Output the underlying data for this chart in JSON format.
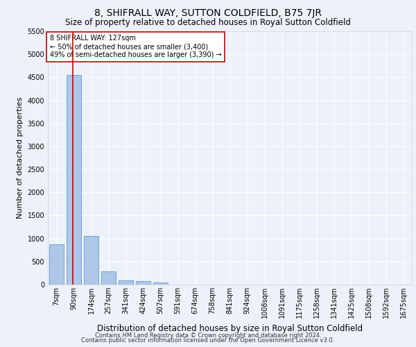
{
  "title": "8, SHIFRALL WAY, SUTTON COLDFIELD, B75 7JR",
  "subtitle": "Size of property relative to detached houses in Royal Sutton Coldfield",
  "xlabel": "Distribution of detached houses by size in Royal Sutton Coldfield",
  "ylabel": "Number of detached properties",
  "footer1": "Contains HM Land Registry data © Crown copyright and database right 2024.",
  "footer2": "Contains public sector information licensed under the Open Government Licence v3.0.",
  "bar_labels": [
    "7sqm",
    "90sqm",
    "174sqm",
    "257sqm",
    "341sqm",
    "424sqm",
    "507sqm",
    "591sqm",
    "674sqm",
    "758sqm",
    "841sqm",
    "924sqm",
    "1008sqm",
    "1091sqm",
    "1175sqm",
    "1258sqm",
    "1341sqm",
    "1425sqm",
    "1508sqm",
    "1592sqm",
    "1675sqm"
  ],
  "bar_values": [
    880,
    4550,
    1060,
    280,
    85,
    80,
    50,
    0,
    0,
    0,
    0,
    0,
    0,
    0,
    0,
    0,
    0,
    0,
    0,
    0,
    0
  ],
  "bar_color": "#aec6e8",
  "bar_edge_color": "#5b9bd5",
  "highlight_line_color": "#cc0000",
  "annotation_text": "8 SHIFRALL WAY: 127sqm\n← 50% of detached houses are smaller (3,400)\n49% of semi-detached houses are larger (3,390) →",
  "annotation_box_color": "#ffffff",
  "annotation_box_edge": "#cc0000",
  "ylim": [
    0,
    5500
  ],
  "yticks": [
    0,
    500,
    1000,
    1500,
    2000,
    2500,
    3000,
    3500,
    4000,
    4500,
    5000,
    5500
  ],
  "background_color": "#edf2fa",
  "plot_bg_color": "#edf2fa",
  "grid_color": "#ffffff",
  "title_fontsize": 10,
  "subtitle_fontsize": 8.5,
  "xlabel_fontsize": 8.5,
  "ylabel_fontsize": 8,
  "tick_fontsize": 7,
  "annotation_fontsize": 7,
  "footer_fontsize": 6
}
